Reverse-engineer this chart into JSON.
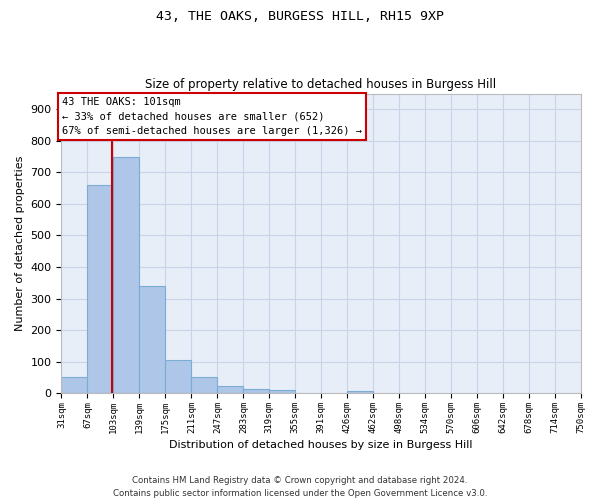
{
  "title": "43, THE OAKS, BURGESS HILL, RH15 9XP",
  "subtitle": "Size of property relative to detached houses in Burgess Hill",
  "xlabel": "Distribution of detached houses by size in Burgess Hill",
  "ylabel": "Number of detached properties",
  "footer_line1": "Contains HM Land Registry data © Crown copyright and database right 2024.",
  "footer_line2": "Contains public sector information licensed under the Open Government Licence v3.0.",
  "bin_edges": [
    31,
    67,
    103,
    139,
    175,
    211,
    247,
    283,
    319,
    355,
    391,
    426,
    462,
    498,
    534,
    570,
    606,
    642,
    678,
    714,
    750
  ],
  "bar_heights": [
    50,
    660,
    750,
    340,
    105,
    50,
    22,
    13,
    10,
    0,
    0,
    7,
    0,
    0,
    0,
    0,
    0,
    0,
    0,
    0
  ],
  "bar_color": "#aec6e8",
  "bar_edgecolor": "#7aadd4",
  "red_line_x": 101,
  "annotation_text_line1": "43 THE OAKS: 101sqm",
  "annotation_text_line2": "← 33% of detached houses are smaller (652)",
  "annotation_text_line3": "67% of semi-detached houses are larger (1,326) →",
  "annotation_box_color": "#ffffff",
  "annotation_border_color": "#cc0000",
  "red_line_color": "#cc0000",
  "grid_color": "#c8d4e8",
  "background_color": "#e8eef8",
  "ylim": [
    0,
    950
  ],
  "yticks": [
    0,
    100,
    200,
    300,
    400,
    500,
    600,
    700,
    800,
    900
  ],
  "tick_labels": [
    "31sqm",
    "67sqm",
    "103sqm",
    "139sqm",
    "175sqm",
    "211sqm",
    "247sqm",
    "283sqm",
    "319sqm",
    "355sqm",
    "391sqm",
    "426sqm",
    "462sqm",
    "498sqm",
    "534sqm",
    "570sqm",
    "606sqm",
    "642sqm",
    "678sqm",
    "714sqm",
    "750sqm"
  ]
}
